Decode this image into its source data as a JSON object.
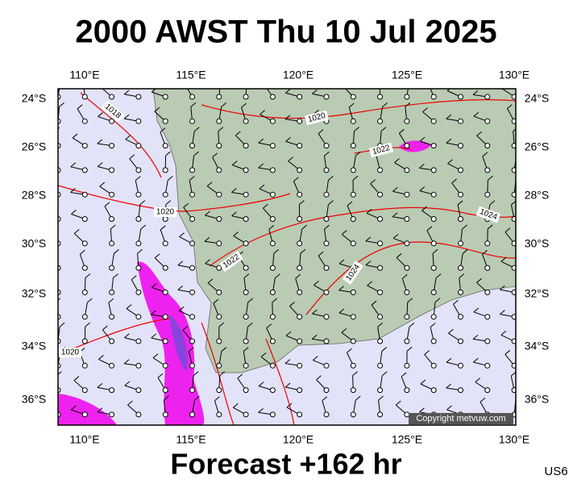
{
  "header": {
    "title": "2000 AWST Thu 10 Jul 2025"
  },
  "longitude_labels": [
    "110°E",
    "115°E",
    "120°E",
    "125°E",
    "130°E"
  ],
  "latitude_labels": [
    "24°S",
    "26°S",
    "28°S",
    "30°S",
    "32°S",
    "34°S",
    "36°S"
  ],
  "isobar_labels": [
    "1018",
    "1020",
    "1020",
    "1020",
    "1022",
    "1022",
    "1024",
    "1024"
  ],
  "copyright": "Copyright metvuw.com",
  "footer": {
    "forecast": "Forecast +162 hr",
    "code": "US6"
  }
}
